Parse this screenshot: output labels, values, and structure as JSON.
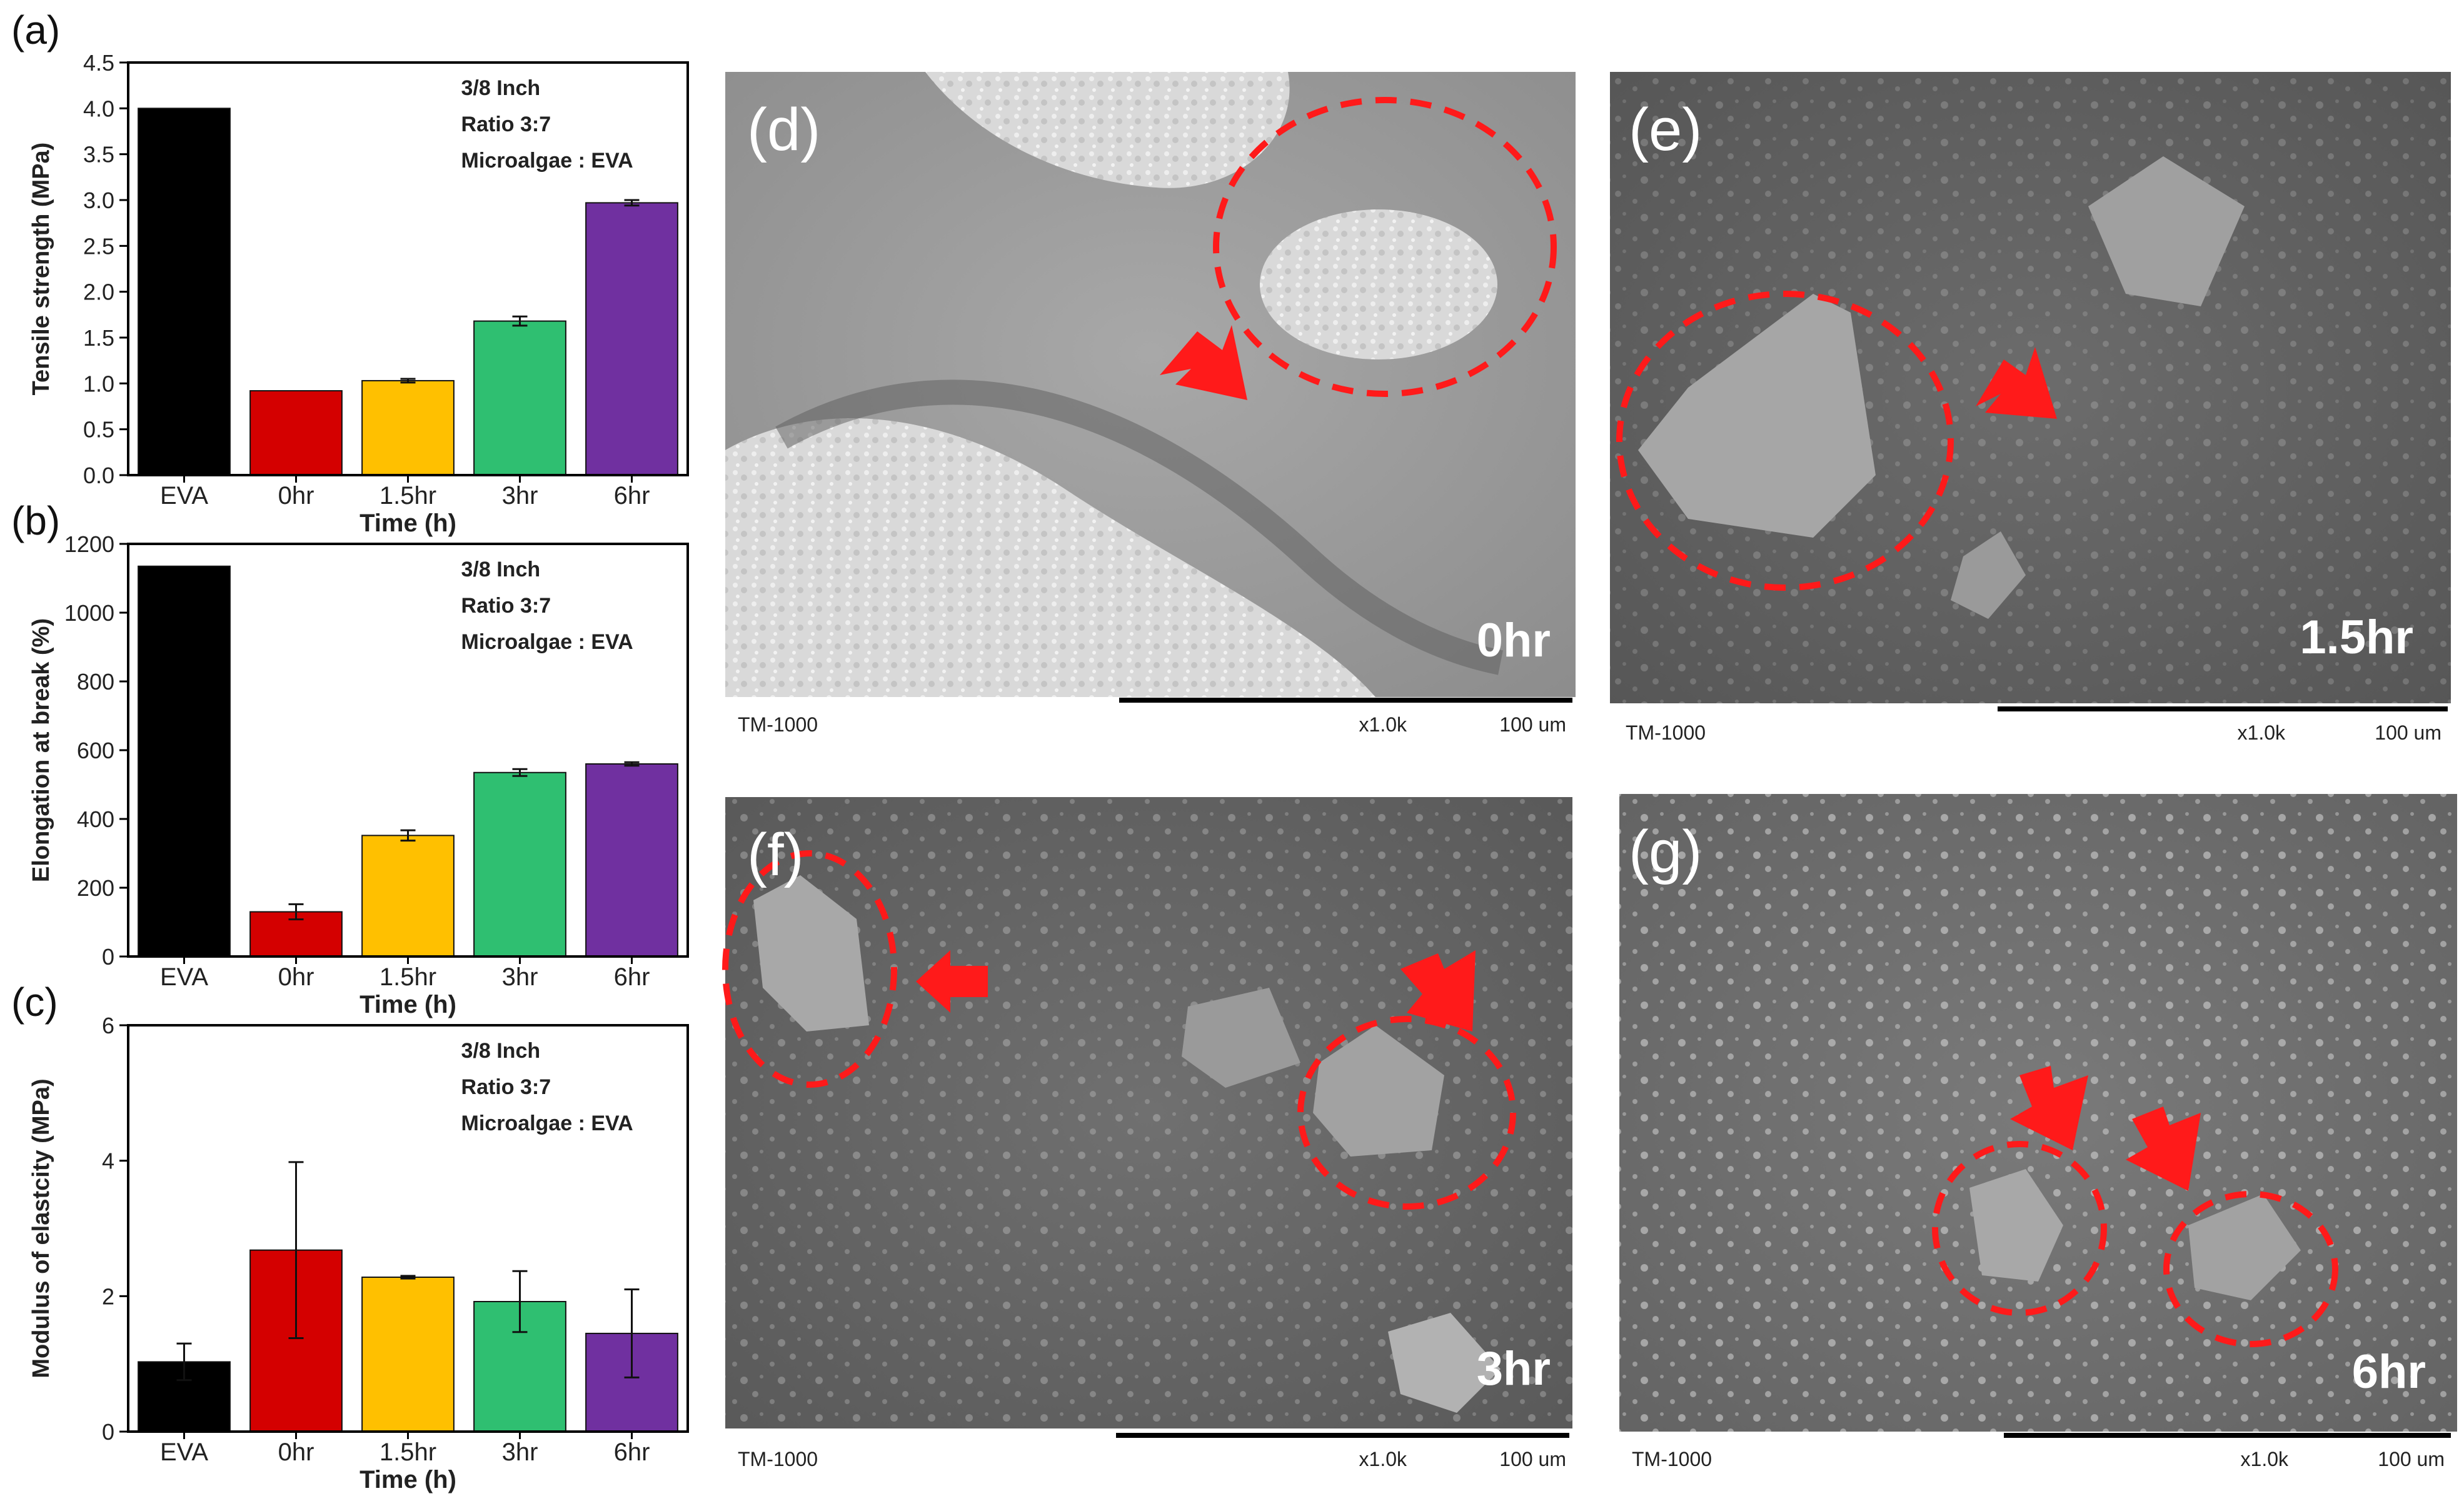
{
  "figure": {
    "panels": {
      "a": "(a)",
      "b": "(b)",
      "c": "(c)",
      "d": "(d)",
      "e": "(e)",
      "f": "(f)",
      "g": "(g)"
    }
  },
  "chart_data": [
    {
      "type": "bar",
      "panel": "(a)",
      "categories": [
        "EVA",
        "0hr",
        "1.5hr",
        "3hr",
        "6hr"
      ],
      "values": [
        4.0,
        0.92,
        1.03,
        1.68,
        2.97
      ],
      "errors": [
        0,
        0,
        0.02,
        0.05,
        0.03
      ],
      "colors": [
        "#000000",
        "#d40000",
        "#ffc000",
        "#2fbf71",
        "#7030a0"
      ],
      "xlabel": "Time (h)",
      "ylabel": "Tensile strength (MPa)",
      "ylim": [
        0,
        4.5
      ],
      "yticks": [
        "0.0",
        "0.5",
        "1.0",
        "1.5",
        "2.0",
        "2.5",
        "3.0",
        "3.5",
        "4.0",
        "4.5"
      ],
      "annotations": [
        "3/8 Inch",
        "Ratio 3:7",
        "Microalgae : EVA"
      ]
    },
    {
      "type": "bar",
      "panel": "(b)",
      "categories": [
        "EVA",
        "0hr",
        "1.5hr",
        "3hr",
        "6hr"
      ],
      "values": [
        1135,
        130,
        352,
        535,
        560
      ],
      "errors": [
        0,
        22,
        15,
        10,
        5
      ],
      "colors": [
        "#000000",
        "#d40000",
        "#ffc000",
        "#2fbf71",
        "#7030a0"
      ],
      "xlabel": "Time (h)",
      "ylabel": "Elongation at break (%)",
      "ylim": [
        0,
        1200
      ],
      "yticks": [
        "0",
        "200",
        "400",
        "600",
        "800",
        "1000",
        "1200"
      ],
      "annotations": [
        "3/8 Inch",
        "Ratio 3:7",
        "Microalgae : EVA"
      ]
    },
    {
      "type": "bar",
      "panel": "(c)",
      "categories": [
        "EVA",
        "0hr",
        "1.5hr",
        "3hr",
        "6hr"
      ],
      "values": [
        1.03,
        2.68,
        2.28,
        1.92,
        1.45
      ],
      "errors": [
        0.27,
        1.3,
        0.02,
        0.45,
        0.65
      ],
      "colors": [
        "#000000",
        "#d40000",
        "#ffc000",
        "#2fbf71",
        "#7030a0"
      ],
      "xlabel": "Time (h)",
      "ylabel": "Modulus of elastcity (MPa)",
      "ylim": [
        0,
        6
      ],
      "yticks": [
        "0",
        "2",
        "4",
        "6"
      ],
      "annotations": [
        "3/8 Inch",
        "Ratio 3:7",
        "Microalgae : EVA"
      ]
    }
  ],
  "sem_images": [
    {
      "panel": "(d)",
      "time": "0hr",
      "instrument": "TM-1000",
      "magnification": "x1.0k",
      "scale": "100 um"
    },
    {
      "panel": "(e)",
      "time": "1.5hr",
      "instrument": "TM-1000",
      "magnification": "x1.0k",
      "scale": "100 um"
    },
    {
      "panel": "(f)",
      "time": "3hr",
      "instrument": "TM-1000",
      "magnification": "x1.0k",
      "scale": "100 um"
    },
    {
      "panel": "(g)",
      "time": "6hr",
      "instrument": "TM-1000",
      "magnification": "x1.0k",
      "scale": "100 um"
    }
  ],
  "colors": {
    "highlight": "#ff1a1a",
    "sem_background": "#8a8a8a"
  }
}
